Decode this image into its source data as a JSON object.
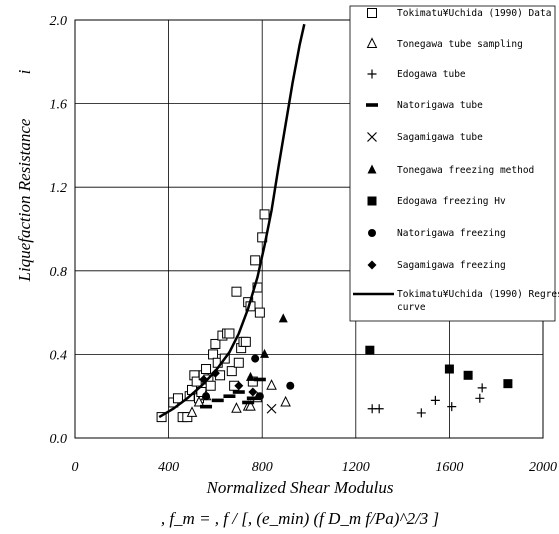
{
  "chart_data": {
    "type": "scatter",
    "title": "",
    "xlabel": "Normalized Shear Modulus",
    "xlabel_formula": ", f_m = , f / [, (e_min) (f D_m f/Pa)^2/3 ]",
    "ylabel": "Liquefaction Resistance",
    "ylabel_symbol": "i",
    "xlim": [
      0,
      2000
    ],
    "ylim": [
      0,
      2.0
    ],
    "x_ticks": [
      0,
      400,
      800,
      1200,
      1600,
      2000
    ],
    "x_tick_labels": [
      "0",
      "400",
      "800",
      "1200",
      "1600",
      "2000"
    ],
    "y_ticks": [
      0,
      0.4,
      0.8,
      1.2,
      1.6,
      2.0
    ],
    "y_tick_labels": [
      "0.0",
      "0.4",
      "0.8",
      "1.2",
      "1.6",
      "2.0"
    ],
    "grid": true,
    "legend_position": "top-right",
    "series": [
      {
        "name": "Tokimatu¥Uchida (1990) Data",
        "marker": "open-square",
        "points": [
          [
            370,
            0.1
          ],
          [
            420,
            0.17
          ],
          [
            440,
            0.19
          ],
          [
            460,
            0.1
          ],
          [
            480,
            0.1
          ],
          [
            490,
            0.2
          ],
          [
            500,
            0.23
          ],
          [
            510,
            0.3
          ],
          [
            520,
            0.27
          ],
          [
            530,
            0.19
          ],
          [
            540,
            0.22
          ],
          [
            550,
            0.3
          ],
          [
            560,
            0.33
          ],
          [
            570,
            0.28
          ],
          [
            580,
            0.25
          ],
          [
            590,
            0.4
          ],
          [
            600,
            0.45
          ],
          [
            610,
            0.36
          ],
          [
            620,
            0.3
          ],
          [
            630,
            0.49
          ],
          [
            640,
            0.38
          ],
          [
            650,
            0.5
          ],
          [
            660,
            0.5
          ],
          [
            670,
            0.32
          ],
          [
            680,
            0.25
          ],
          [
            690,
            0.7
          ],
          [
            700,
            0.36
          ],
          [
            710,
            0.43
          ],
          [
            720,
            0.46
          ],
          [
            730,
            0.46
          ],
          [
            740,
            0.65
          ],
          [
            750,
            0.63
          ],
          [
            760,
            0.27
          ],
          [
            770,
            0.85
          ],
          [
            780,
            0.72
          ],
          [
            790,
            0.6
          ],
          [
            800,
            0.96
          ],
          [
            810,
            1.07
          ]
        ]
      },
      {
        "name": "Tonegawa tube sampling",
        "marker": "open-triangle",
        "points": [
          [
            500,
            0.12
          ],
          [
            530,
            0.17
          ],
          [
            560,
            0.2
          ],
          [
            690,
            0.14
          ],
          [
            740,
            0.15
          ],
          [
            750,
            0.15
          ],
          [
            780,
            0.19
          ],
          [
            840,
            0.25
          ],
          [
            900,
            0.17
          ]
        ]
      },
      {
        "name": "Edogawa tube",
        "marker": "plus",
        "points": [
          [
            1270,
            0.14
          ],
          [
            1300,
            0.14
          ],
          [
            1480,
            0.12
          ],
          [
            1540,
            0.18
          ],
          [
            1610,
            0.15
          ],
          [
            1730,
            0.19
          ],
          [
            1740,
            0.24
          ]
        ]
      },
      {
        "name": "Natorigawa tube",
        "marker": "dash",
        "points": [
          [
            560,
            0.15
          ],
          [
            610,
            0.18
          ],
          [
            660,
            0.2
          ],
          [
            700,
            0.22
          ],
          [
            740,
            0.17
          ],
          [
            760,
            0.19
          ],
          [
            790,
            0.28
          ]
        ]
      },
      {
        "name": "Sagamigawa tube",
        "marker": "x-cross",
        "points": [
          [
            840,
            0.14
          ]
        ]
      },
      {
        "name": "Tonegawa freezing method",
        "marker": "filled-triangle",
        "points": [
          [
            750,
            0.29
          ],
          [
            810,
            0.4
          ],
          [
            890,
            0.57
          ]
        ]
      },
      {
        "name": "Edogawa freezing Hv",
        "marker": "filled-square",
        "points": [
          [
            1260,
            0.42
          ],
          [
            1600,
            0.33
          ],
          [
            1680,
            0.3
          ],
          [
            1850,
            0.26
          ]
        ]
      },
      {
        "name": "Natorigawa freezing",
        "marker": "filled-circle",
        "points": [
          [
            560,
            0.2
          ],
          [
            770,
            0.38
          ],
          [
            790,
            0.2
          ],
          [
            920,
            0.25
          ]
        ]
      },
      {
        "name": "Sagamigawa freezing",
        "marker": "filled-diamond",
        "points": [
          [
            550,
            0.28
          ],
          [
            600,
            0.31
          ],
          [
            700,
            0.25
          ],
          [
            760,
            0.22
          ]
        ]
      }
    ],
    "curve": {
      "name": "Tokimatu¥Uchida (1990) Regression curve",
      "x": [
        360,
        420,
        480,
        540,
        600,
        660,
        700,
        740,
        780,
        810,
        840,
        870,
        900,
        930,
        960,
        980
      ],
      "y": [
        0.1,
        0.14,
        0.19,
        0.25,
        0.32,
        0.41,
        0.5,
        0.62,
        0.77,
        0.92,
        1.09,
        1.3,
        1.5,
        1.7,
        1.88,
        1.98
      ]
    }
  }
}
